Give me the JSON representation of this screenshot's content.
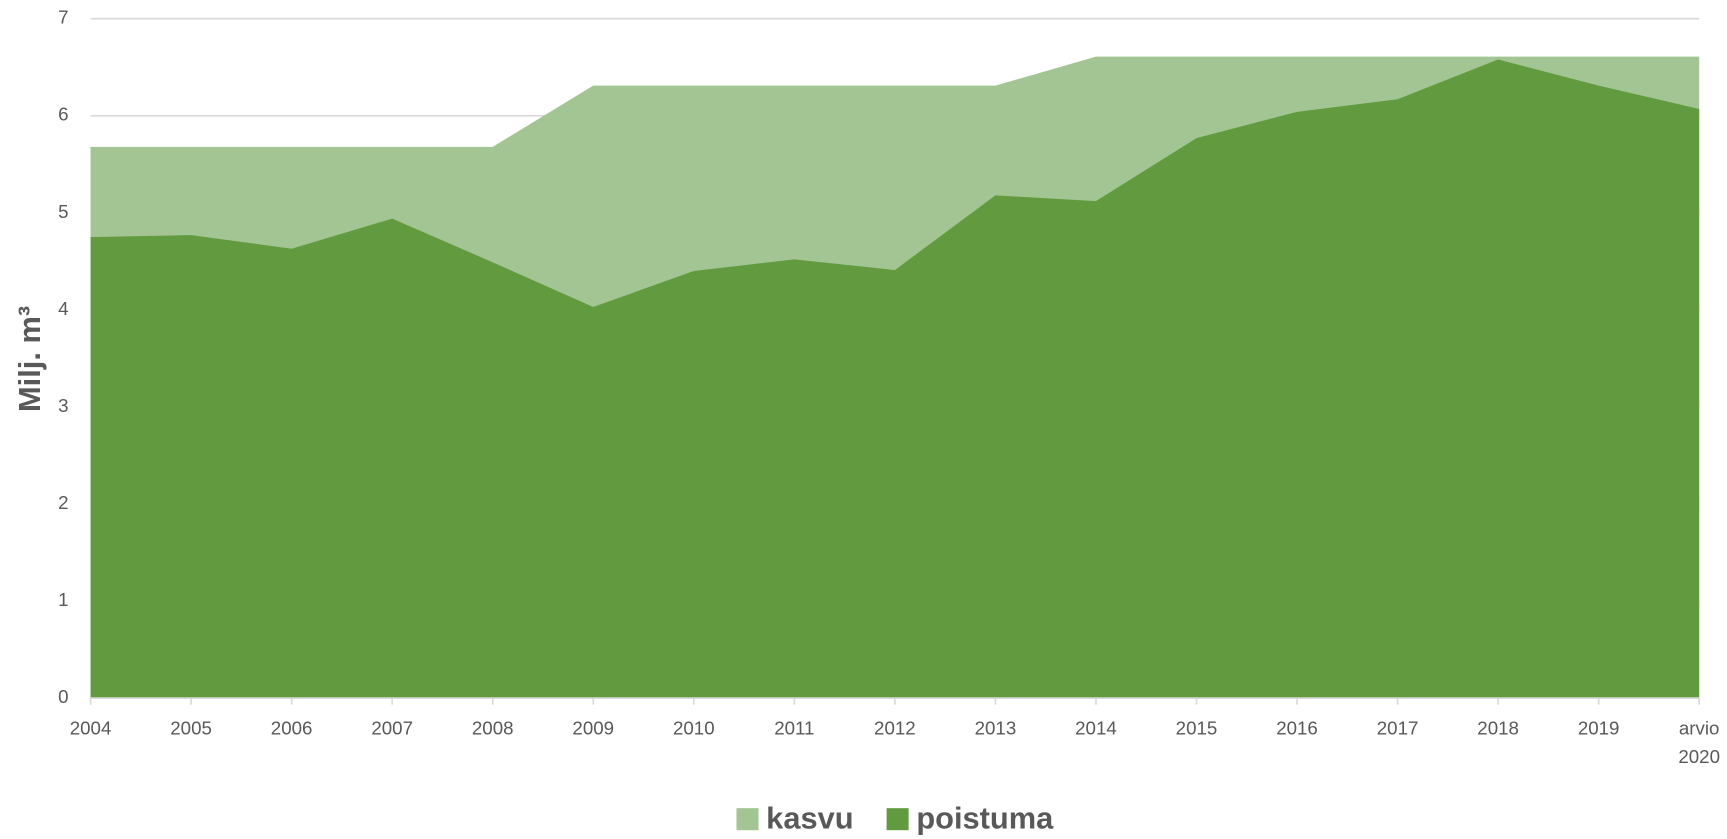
{
  "chart_data": {
    "type": "area",
    "y_label": "Milj. m³",
    "categories": [
      "2004",
      "2005",
      "2006",
      "2007",
      "2008",
      "2009",
      "2010",
      "2011",
      "2012",
      "2013",
      "2014",
      "2015",
      "2016",
      "2017",
      "2018",
      "2019",
      "arvio 2020"
    ],
    "series": [
      {
        "name": "kasvu",
        "color": "#a3c493",
        "values": [
          5.68,
          5.68,
          5.68,
          5.68,
          5.68,
          6.31,
          6.31,
          6.31,
          6.31,
          6.31,
          6.61,
          6.61,
          6.61,
          6.61,
          6.61,
          6.61,
          6.61
        ]
      },
      {
        "name": "poistuma",
        "color": "#629a3f",
        "values": [
          4.75,
          4.77,
          4.63,
          4.94,
          4.49,
          4.03,
          4.4,
          4.52,
          4.41,
          5.18,
          5.12,
          5.77,
          6.04,
          6.17,
          6.58,
          6.31,
          6.07
        ]
      }
    ],
    "ylim": [
      0,
      7
    ],
    "yticks": [
      0,
      1,
      2,
      3,
      4,
      5,
      6,
      7
    ],
    "grid": true,
    "legend": "bottom"
  }
}
